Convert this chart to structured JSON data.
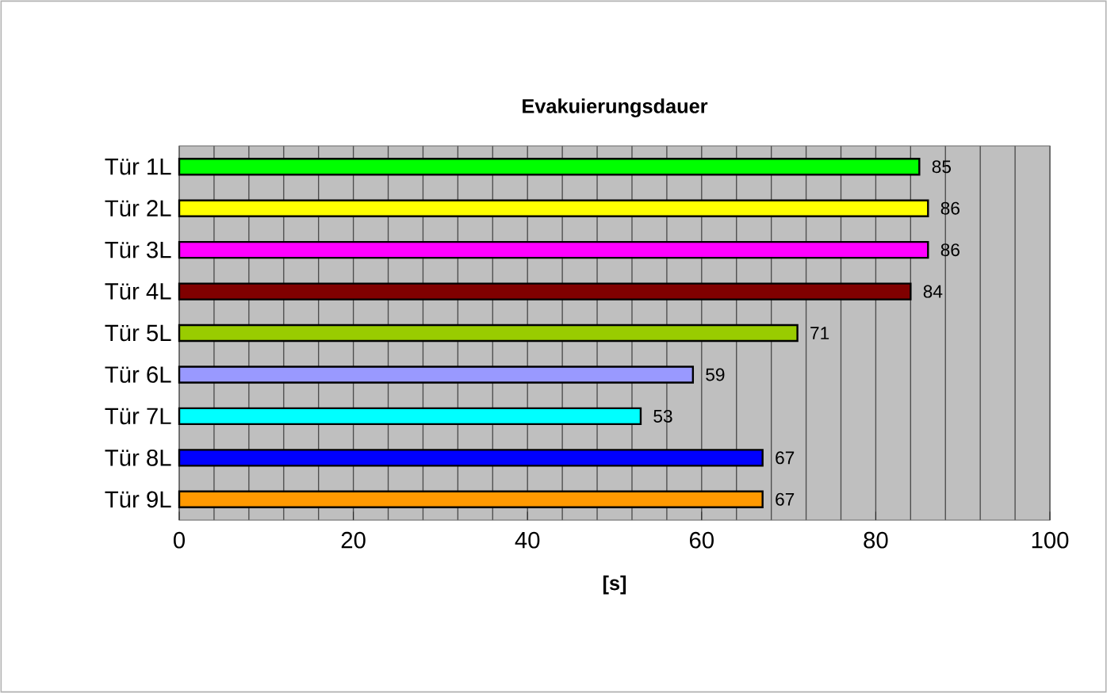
{
  "chart_data": {
    "type": "bar",
    "orientation": "horizontal",
    "title": "Evakuierungsdauer",
    "xlabel": "[s]",
    "categories": [
      "Tür 1L",
      "Tür 2L",
      "Tür 3L",
      "Tür 4L",
      "Tür 5L",
      "Tür 6L",
      "Tür 7L",
      "Tür 8L",
      "Tür 9L"
    ],
    "values": [
      85,
      86,
      86,
      84,
      71,
      59,
      53,
      67,
      67
    ],
    "colors": [
      "#00ff00",
      "#ffff00",
      "#ff00ff",
      "#800000",
      "#99cc00",
      "#9999ff",
      "#00ffff",
      "#0000ff",
      "#ff9900"
    ],
    "data_labels": true,
    "xlim": [
      0,
      100
    ],
    "xticks": [
      0,
      {
        "value": 4,
        "label": null
      },
      {
        "value": 8,
        "label": null
      },
      {
        "value": 12,
        "label": null
      },
      {
        "value": 16,
        "label": null
      },
      20,
      {
        "value": 24,
        "label": null
      },
      {
        "value": 28,
        "label": null
      },
      {
        "value": 32,
        "label": null
      },
      {
        "value": 36,
        "label": null
      },
      40,
      {
        "value": 44,
        "label": null
      },
      {
        "value": 48,
        "label": null
      },
      {
        "value": 52,
        "label": null
      },
      {
        "value": 56,
        "label": null
      },
      60,
      {
        "value": 64,
        "label": null
      },
      {
        "value": 68,
        "label": null
      },
      {
        "value": 72,
        "label": null
      },
      {
        "value": 76,
        "label": null
      },
      80,
      {
        "value": 84,
        "label": null
      },
      {
        "value": 88,
        "label": null
      },
      {
        "value": 92,
        "label": null
      },
      {
        "value": 96,
        "label": null
      },
      100
    ],
    "grid": "x"
  }
}
